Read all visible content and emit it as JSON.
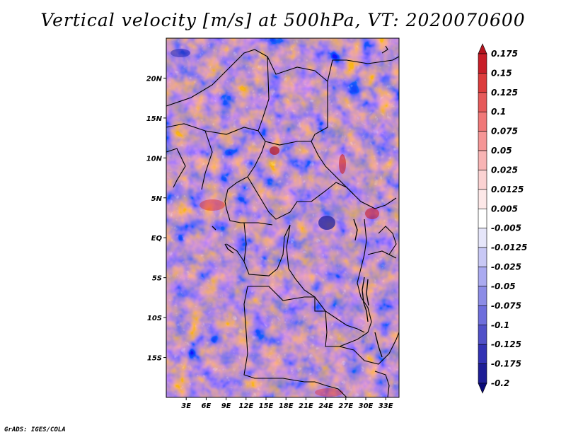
{
  "title": "Vertical velocity [m/s] at 500hPa, VT: 2020070600",
  "credit": "GrADS: IGES/COLA",
  "axes": {
    "lat_labels": [
      "20N",
      "15N",
      "10N",
      "5N",
      "EQ",
      "5S",
      "10S",
      "15S"
    ],
    "lat_values": [
      20,
      15,
      10,
      5,
      0,
      -5,
      -10,
      -15
    ],
    "lon_labels": [
      "3E",
      "6E",
      "9E",
      "12E",
      "15E",
      "18E",
      "21E",
      "24E",
      "27E",
      "30E",
      "33E"
    ],
    "lon_values": [
      3,
      6,
      9,
      12,
      15,
      18,
      21,
      24,
      27,
      30,
      33
    ],
    "lat_range": [
      -20,
      25
    ],
    "lon_range": [
      0,
      35
    ]
  },
  "colorbar": {
    "labels": [
      "0.175",
      "0.15",
      "0.125",
      "0.1",
      "0.075",
      "0.05",
      "0.025",
      "0.0125",
      "0.005",
      "-0.005",
      "-0.0125",
      "-0.025",
      "-0.05",
      "-0.075",
      "-0.1",
      "-0.125",
      "-0.175",
      "-0.2"
    ],
    "colors": [
      "#b4141e",
      "#c81e28",
      "#dc3c3c",
      "#e65a5a",
      "#f07878",
      "#f59696",
      "#f8b4b4",
      "#fbd2d2",
      "#fde8e8",
      "#ffffff",
      "#e6e6fa",
      "#c8c8f5",
      "#aaaaf0",
      "#8c8ce6",
      "#6e6edc",
      "#5050c8",
      "#3232b4",
      "#1e1e96",
      "#0a0a78"
    ]
  },
  "features": {
    "boundary_color": "#000000",
    "coastline_color": "#000000"
  }
}
